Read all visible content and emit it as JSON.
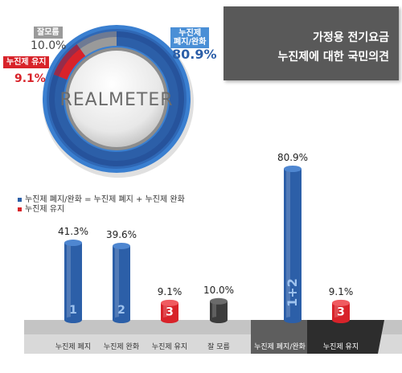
{
  "title": {
    "line1": "가정용 전기요금",
    "line2": "누진제에 대한 국민의견"
  },
  "brand": "REALMETER",
  "colors": {
    "blue": "#2c5fa8",
    "blue_light": "#4a8fd6",
    "red": "#d8232a",
    "gray": "#9a9a9a",
    "dark": "#3c3c3c"
  },
  "legend": [
    {
      "label": "누진제 폐지/완화 = 누진제 폐지 + 누진제 완화",
      "color": "#2c5fa8"
    },
    {
      "label": "누진제 유지",
      "color": "#d8232a"
    }
  ],
  "chart_data": [
    {
      "type": "pie",
      "labels": [
        "누진제 폐지/완화",
        "누진제 유지",
        "잘모름"
      ],
      "values": [
        80.9,
        9.1,
        10.0
      ],
      "value_labels": [
        "80.9%",
        "9.1%",
        "10.0%"
      ],
      "tag_labels": [
        "누진제\n폐지/완화",
        "누진제 유지",
        "잘모름"
      ]
    },
    {
      "type": "bar",
      "categories": [
        "누진제 폐지",
        "누진제 완화",
        "누진제 유지",
        "잘 모름",
        "누진제 폐지/완화",
        "누진제 유지"
      ],
      "values": [
        41.3,
        39.6,
        9.1,
        10.0,
        80.9,
        9.1
      ],
      "value_labels": [
        "41.3%",
        "39.6%",
        "9.1%",
        "10.0%",
        "80.9%",
        "9.1%"
      ],
      "markers": [
        "1",
        "2",
        "3",
        "",
        "1+2",
        "3"
      ]
    }
  ]
}
